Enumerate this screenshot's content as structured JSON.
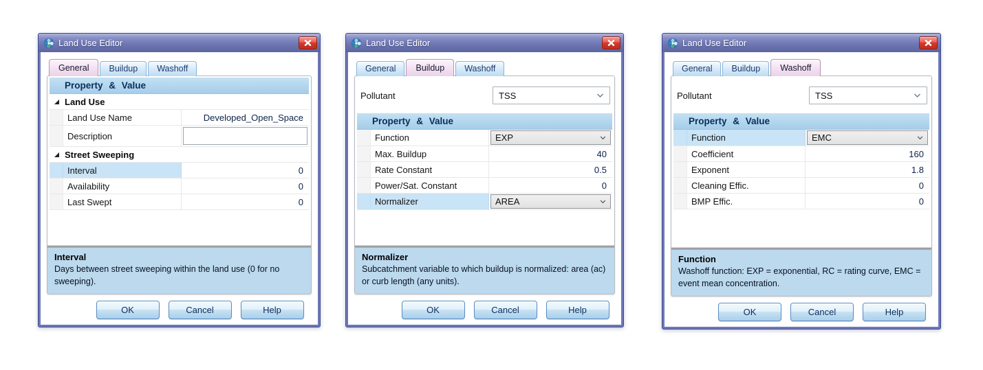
{
  "colors": {
    "titlebar_accent": "#6f78b4",
    "close_button_red": "#d63a2c",
    "grid_header_blue": "#a6cde9",
    "row_selection_blue": "#c9e4f6",
    "info_panel_blue": "#bcd9ee",
    "active_tab_pink": "#f2dff0",
    "inactive_tab_blue": "#cde6f7",
    "button_face_blue": "#c6e1f3"
  },
  "dialogs": [
    {
      "title": "Land Use Editor",
      "close_icon": "close-x",
      "tabs": [
        {
          "label": "General",
          "active": true
        },
        {
          "label": "Buildup",
          "active": false
        },
        {
          "label": "Washoff",
          "active": false
        }
      ],
      "pollutant": null,
      "grid_header": "Property & Value",
      "rows": [
        {
          "type": "category",
          "label": "Land Use"
        },
        {
          "type": "text",
          "label": "Land Use Name",
          "value": "Developed_Open_Space"
        },
        {
          "type": "input",
          "label": "Description",
          "value": ""
        },
        {
          "type": "category",
          "label": "Street Sweeping"
        },
        {
          "type": "text",
          "label": "Interval",
          "value": "0",
          "selected": true
        },
        {
          "type": "text",
          "label": "Availability",
          "value": "0"
        },
        {
          "type": "text",
          "label": "Last Swept",
          "value": "0"
        }
      ],
      "info": {
        "title": "Interval",
        "text": "Days between street sweeping within the land use (0 for no sweeping)."
      },
      "buttons": [
        {
          "label": "OK"
        },
        {
          "label": "Cancel"
        },
        {
          "label": "Help"
        }
      ]
    },
    {
      "title": "Land Use Editor",
      "close_icon": "close-x",
      "tabs": [
        {
          "label": "General",
          "active": false
        },
        {
          "label": "Buildup",
          "active": true
        },
        {
          "label": "Washoff",
          "active": false
        }
      ],
      "pollutant": {
        "label": "Pollutant",
        "value": "TSS"
      },
      "grid_header": "Property & Value",
      "rows": [
        {
          "type": "combo",
          "label": "Function",
          "value": "EXP"
        },
        {
          "type": "text",
          "label": "Max. Buildup",
          "value": "40"
        },
        {
          "type": "text",
          "label": "Rate Constant",
          "value": "0.5"
        },
        {
          "type": "text",
          "label": "Power/Sat. Constant",
          "value": "0"
        },
        {
          "type": "combo",
          "label": "Normalizer",
          "value": "AREA",
          "selected": true
        }
      ],
      "info": {
        "title": "Normalizer",
        "text": "Subcatchment variable to which buildup is normalized: area (ac) or curb length (any units)."
      },
      "buttons": [
        {
          "label": "OK"
        },
        {
          "label": "Cancel"
        },
        {
          "label": "Help"
        }
      ]
    },
    {
      "title": "Land Use Editor",
      "close_icon": "close-x",
      "tabs": [
        {
          "label": "General",
          "active": false
        },
        {
          "label": "Buildup",
          "active": false
        },
        {
          "label": "Washoff",
          "active": true
        }
      ],
      "pollutant": {
        "label": "Pollutant",
        "value": "TSS"
      },
      "grid_header": "Property & Value",
      "rows": [
        {
          "type": "combo",
          "label": "Function",
          "value": "EMC",
          "selected": true
        },
        {
          "type": "text",
          "label": "Coefficient",
          "value": "160"
        },
        {
          "type": "text",
          "label": "Exponent",
          "value": "1.8"
        },
        {
          "type": "text",
          "label": "Cleaning Effic.",
          "value": "0"
        },
        {
          "type": "text",
          "label": "BMP Effic.",
          "value": "0"
        }
      ],
      "info": {
        "title": "Function",
        "text": "Washoff function: EXP = exponential, RC = rating curve, EMC = event mean concentration."
      },
      "buttons": [
        {
          "label": "OK"
        },
        {
          "label": "Cancel"
        },
        {
          "label": "Help"
        }
      ]
    }
  ]
}
